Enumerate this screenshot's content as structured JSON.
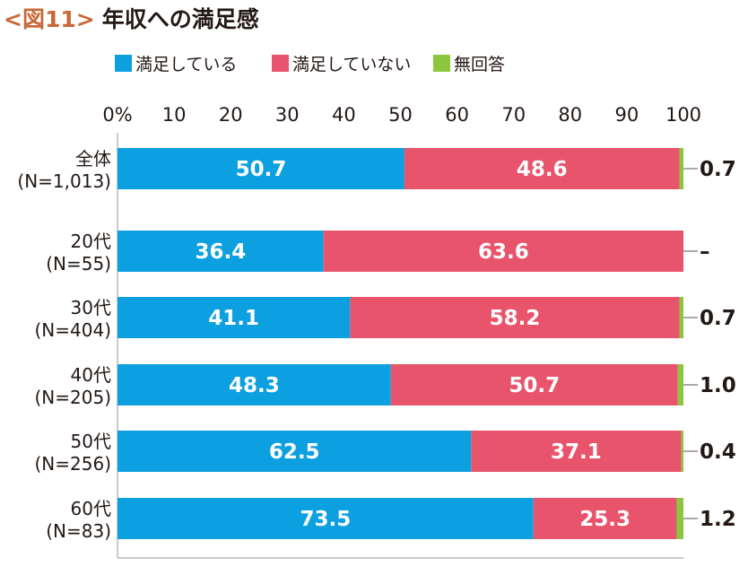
{
  "title": {
    "figure_label": "<図11>",
    "text": "年収への満足感"
  },
  "colors": {
    "satisfied": "#0da0e0",
    "not_satisfied": "#e8546c",
    "no_answer": "#8cc63e",
    "axis": "#9a9a9a",
    "text": "#231815"
  },
  "chart_data": {
    "type": "bar",
    "orientation": "horizontal",
    "stacked": true,
    "title": "年収への満足感",
    "xlim": [
      0,
      100
    ],
    "x_ticks": [
      "0%",
      "10",
      "20",
      "30",
      "40",
      "50",
      "60",
      "70",
      "80",
      "90",
      "100"
    ],
    "legend_position": "top",
    "categories": [
      {
        "label": "全体",
        "n": "(N=1,013)"
      },
      {
        "label": "20代",
        "n": "(N=55)"
      },
      {
        "label": "30代",
        "n": "(N=404)"
      },
      {
        "label": "40代",
        "n": "(N=205)"
      },
      {
        "label": "50代",
        "n": "(N=256)"
      },
      {
        "label": "60代",
        "n": "(N=83)"
      }
    ],
    "series": [
      {
        "name": "満足している",
        "color": "#0da0e0",
        "values": [
          50.7,
          36.4,
          41.1,
          48.3,
          62.5,
          73.5
        ],
        "labels": [
          "50.7",
          "36.4",
          "41.1",
          "48.3",
          "62.5",
          "73.5"
        ]
      },
      {
        "name": "満足していない",
        "color": "#e8546c",
        "values": [
          48.6,
          63.6,
          58.2,
          50.7,
          37.1,
          25.3
        ],
        "labels": [
          "48.6",
          "63.6",
          "58.2",
          "50.7",
          "37.1",
          "25.3"
        ]
      },
      {
        "name": "無回答",
        "color": "#8cc63e",
        "values": [
          0.7,
          0,
          0.7,
          1.0,
          0.4,
          1.2
        ],
        "labels": [
          "0.7",
          "–",
          "0.7",
          "1.0",
          "0.4",
          "1.2"
        ]
      }
    ]
  }
}
